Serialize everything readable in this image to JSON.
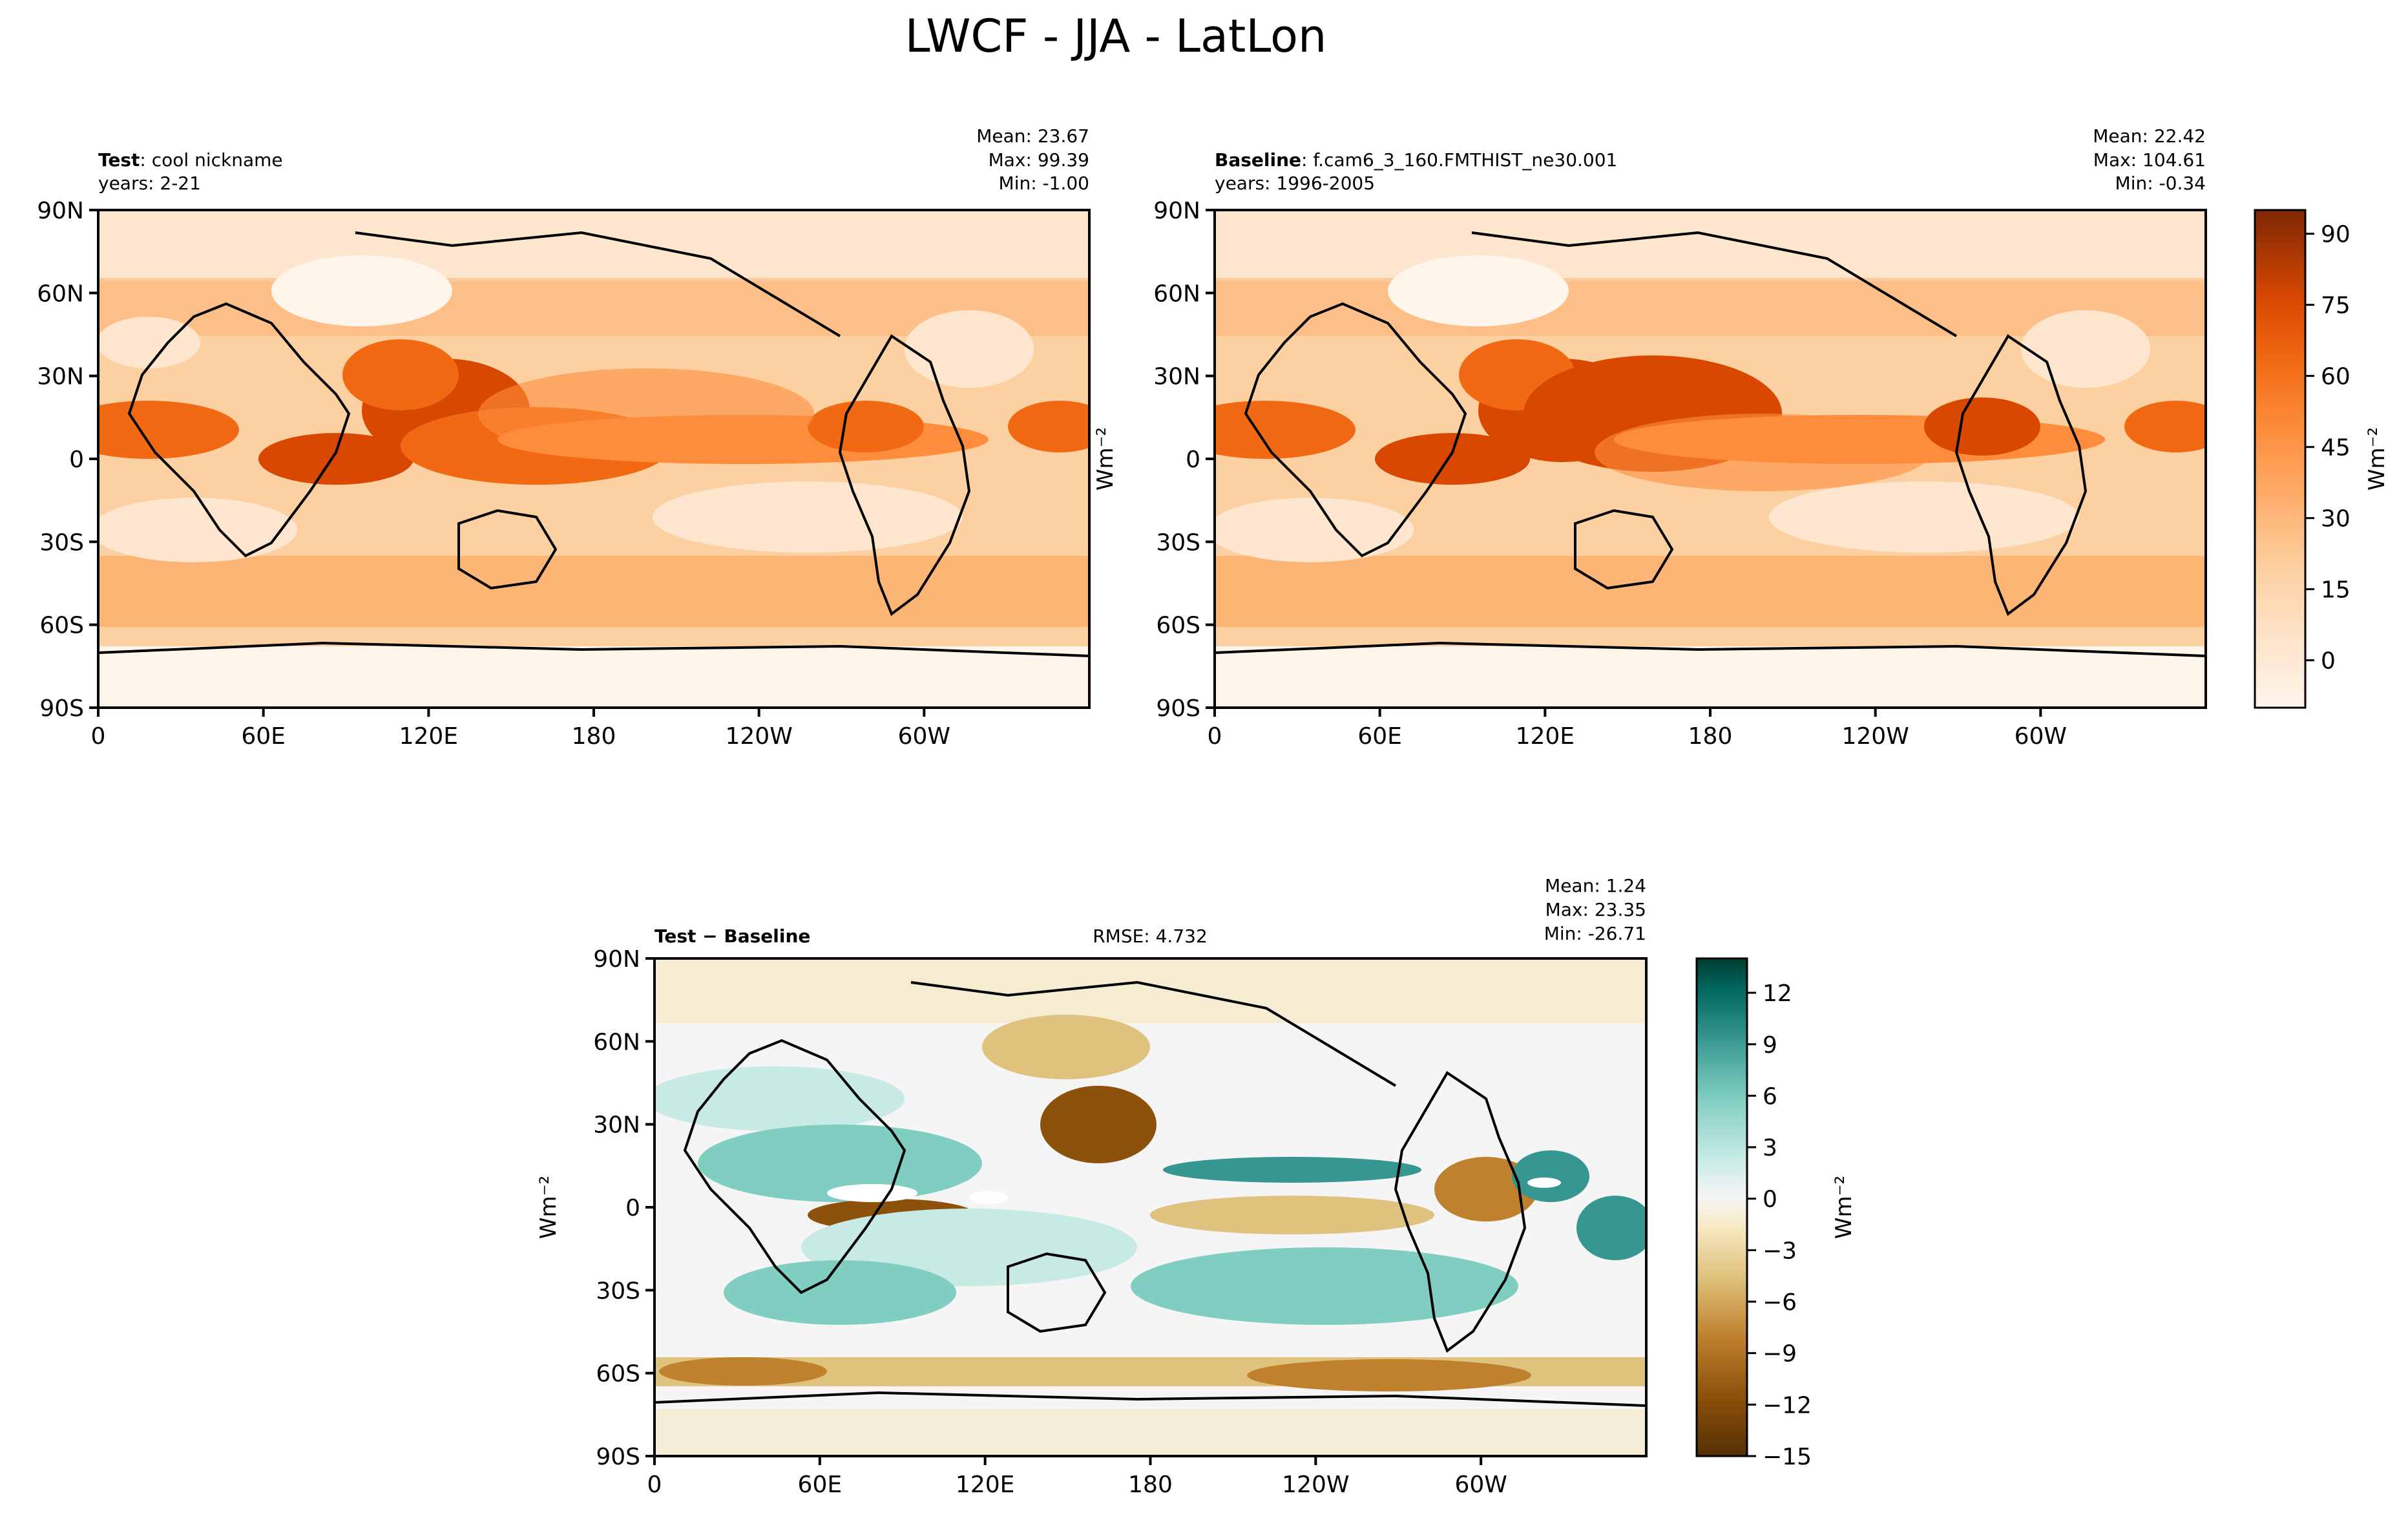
{
  "figure": {
    "title": "LWCF - JJA - LatLon"
  },
  "chart_data": [
    {
      "type": "heatmap",
      "panel": "test",
      "label_bold": "Test",
      "label_text": ": cool nickname",
      "years": "years: 2-21",
      "stats": {
        "mean": "Mean: 23.67",
        "max": "Max: 99.39",
        "min": "Min: -1.00"
      },
      "x_ticks": [
        "0",
        "60E",
        "120E",
        "180",
        "120W",
        "60W"
      ],
      "x_tick_lon": [
        0,
        60,
        120,
        180,
        240,
        300
      ],
      "xlim": [
        0,
        360
      ],
      "y_ticks": [
        "90N",
        "60N",
        "30N",
        "0",
        "30S",
        "60S",
        "90S"
      ],
      "y_tick_lat": [
        90,
        60,
        30,
        0,
        -30,
        -60,
        -90
      ],
      "ylim": [
        -90,
        90
      ],
      "ylabel": "Wm⁻²",
      "variable": "LWCF",
      "units": "Wm⁻²"
    },
    {
      "type": "heatmap",
      "panel": "baseline",
      "label_bold": "Baseline",
      "label_text": ": f.cam6_3_160.FMTHIST_ne30.001",
      "years": "years: 1996-2005",
      "stats": {
        "mean": "Mean: 22.42",
        "max": "Max: 104.61",
        "min": "Min: -0.34"
      },
      "x_ticks": [
        "0",
        "60E",
        "120E",
        "180",
        "120W",
        "60W"
      ],
      "x_tick_lon": [
        0,
        60,
        120,
        180,
        240,
        300
      ],
      "xlim": [
        0,
        360
      ],
      "y_ticks": [
        "90N",
        "60N",
        "30N",
        "0",
        "30S",
        "60S",
        "90S"
      ],
      "y_tick_lat": [
        90,
        60,
        30,
        0,
        -30,
        -60,
        -90
      ],
      "ylim": [
        -90,
        90
      ],
      "colorbar": {
        "label": "Wm⁻²",
        "ticks": [
          "90",
          "75",
          "60",
          "45",
          "30",
          "15",
          "0"
        ],
        "tick_values": [
          90,
          75,
          60,
          45,
          30,
          15,
          0
        ],
        "range": [
          -10,
          95
        ],
        "colors": [
          "#fff5eb",
          "#fee6ce",
          "#fdd0a2",
          "#fdae6b",
          "#fd8d3c",
          "#f16913",
          "#d94801",
          "#a63603",
          "#7f2704"
        ]
      }
    },
    {
      "type": "heatmap",
      "panel": "difference",
      "label_bold": "Test − Baseline",
      "rmse": "RMSE: 4.732",
      "stats": {
        "mean": "Mean:  1.24",
        "max": "Max: 23.35",
        "min": "Min: -26.71"
      },
      "x_ticks": [
        "0",
        "60E",
        "120E",
        "180",
        "120W",
        "60W"
      ],
      "x_tick_lon": [
        0,
        60,
        120,
        180,
        240,
        300
      ],
      "xlim": [
        0,
        360
      ],
      "y_ticks": [
        "90N",
        "60N",
        "30N",
        "0",
        "30S",
        "60S",
        "90S"
      ],
      "y_tick_lat": [
        90,
        60,
        30,
        0,
        -30,
        -60,
        -90
      ],
      "ylim": [
        -90,
        90
      ],
      "ylabel": "Wm⁻²",
      "colorbar": {
        "label": "Wm⁻²",
        "ticks": [
          "12",
          "9",
          "6",
          "3",
          "0",
          "−3",
          "−6",
          "−9",
          "−12",
          "−15"
        ],
        "tick_values": [
          12,
          9,
          6,
          3,
          0,
          -3,
          -6,
          -9,
          -12,
          -15
        ],
        "range": [
          -15,
          14
        ],
        "colors": [
          "#543005",
          "#8c510a",
          "#bf812d",
          "#dfc27d",
          "#f6e8c3",
          "#f5f5f5",
          "#c7eae5",
          "#80cdc1",
          "#35978f",
          "#01665e",
          "#003c30"
        ]
      }
    }
  ]
}
